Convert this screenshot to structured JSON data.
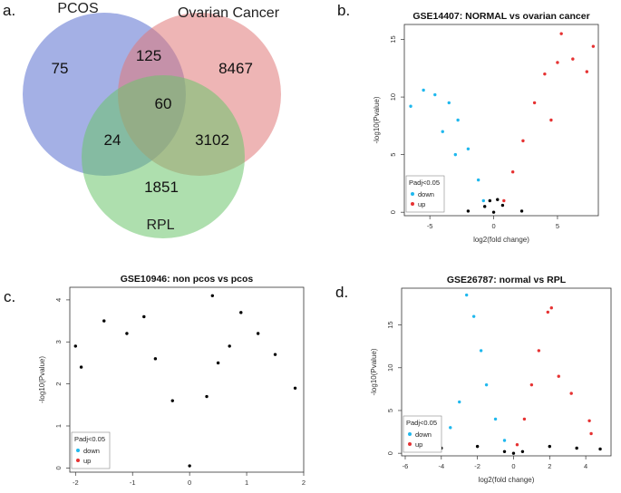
{
  "panel_letters": {
    "a": "a.",
    "b": "b.",
    "c": "c.",
    "d": "d."
  },
  "venn": {
    "sets": {
      "pcos": "PCOS",
      "ovarian": "Ovarian Cancer",
      "rpl": "RPL"
    },
    "colors": {
      "pcos": "#5a6fd0",
      "ovarian": "#e07878",
      "rpl": "#6cc46c"
    },
    "counts": {
      "pcos_only": "75",
      "pcos_ovarian": "125",
      "ovarian_only": "8467",
      "all_three": "60",
      "pcos_rpl": "24",
      "ovarian_rpl": "3102",
      "rpl_only": "1851"
    }
  },
  "legend": {
    "title": "Padj<0.05",
    "down": "down",
    "up": "up",
    "colors": {
      "down": "#1fb8ee",
      "up": "#e63232",
      "ns": "#000000"
    }
  },
  "chart_data": [
    {
      "type": "scatter",
      "title": "GSE14407: NORMAL vs ovarian cancer",
      "xlabel": "log2(fold change)",
      "ylabel": "-log10(Pvalue)",
      "xlim": [
        -7,
        8.2
      ],
      "ylim": [
        -0.3,
        16.3
      ],
      "xticks": [
        -5,
        0,
        5
      ],
      "yticks": [
        0,
        5,
        10,
        15
      ],
      "series": [
        {
          "name": "down",
          "color": "#1fb8ee",
          "points": [
            [
              -6.5,
              9.2
            ],
            [
              -5.5,
              10.6
            ],
            [
              -4.6,
              10.2
            ],
            [
              -3.5,
              9.5
            ],
            [
              -2.8,
              8.0
            ],
            [
              -2.0,
              5.5
            ],
            [
              -1.2,
              2.8
            ],
            [
              -0.8,
              1.0
            ],
            [
              -4.0,
              7.0
            ],
            [
              -3.0,
              5.0
            ]
          ]
        },
        {
          "name": "up",
          "color": "#e63232",
          "points": [
            [
              0.8,
              1.0
            ],
            [
              1.5,
              3.5
            ],
            [
              2.3,
              6.2
            ],
            [
              3.2,
              9.5
            ],
            [
              4.0,
              12.0
            ],
            [
              5.0,
              13.0
            ],
            [
              5.3,
              15.5
            ],
            [
              6.2,
              13.3
            ],
            [
              7.3,
              12.2
            ],
            [
              7.8,
              14.4
            ],
            [
              4.5,
              8.0
            ]
          ]
        },
        {
          "name": "ns",
          "color": "#000000",
          "points": [
            [
              -0.7,
              0.5
            ],
            [
              0,
              0.0
            ],
            [
              0.7,
              0.6
            ],
            [
              -2.0,
              0.1
            ],
            [
              2.2,
              0.1
            ],
            [
              -0.3,
              1.0
            ],
            [
              0.3,
              1.1
            ]
          ]
        }
      ]
    },
    {
      "type": "scatter",
      "title": "GSE10946: non pcos vs pcos",
      "xlabel": "log2(fold change)",
      "ylabel": "-log10(Pvalue)",
      "xlim": [
        -2.1,
        2.0
      ],
      "ylim": [
        -0.1,
        4.3
      ],
      "xticks": [
        -2,
        -1,
        0,
        1,
        2
      ],
      "yticks": [
        0,
        1,
        2,
        3,
        4
      ],
      "series": [
        {
          "name": "ns",
          "color": "#000000",
          "points": [
            [
              -2.0,
              2.9
            ],
            [
              -1.9,
              2.4
            ],
            [
              -1.5,
              3.5
            ],
            [
              -1.1,
              3.2
            ],
            [
              -0.6,
              2.6
            ],
            [
              -0.3,
              1.6
            ],
            [
              0,
              0.05
            ],
            [
              0.3,
              1.7
            ],
            [
              0.5,
              2.5
            ],
            [
              0.7,
              2.9
            ],
            [
              0.4,
              4.1
            ],
            [
              1.2,
              3.2
            ],
            [
              1.5,
              2.7
            ],
            [
              1.85,
              1.9
            ],
            [
              -0.8,
              3.6
            ],
            [
              0.9,
              3.7
            ]
          ]
        }
      ]
    },
    {
      "type": "scatter",
      "title": "GSE26787: normal vs RPL",
      "xlabel": "log2(fold change)",
      "ylabel": "-log10(Pvalue)",
      "xlim": [
        -6.2,
        5.4
      ],
      "ylim": [
        -0.3,
        19.3
      ],
      "xticks": [
        -6,
        -4,
        -2,
        0,
        2,
        4
      ],
      "yticks": [
        0,
        5,
        10,
        15
      ],
      "series": [
        {
          "name": "down",
          "color": "#1fb8ee",
          "points": [
            [
              -2.6,
              18.5
            ],
            [
              -2.2,
              16.0
            ],
            [
              -1.8,
              12.0
            ],
            [
              -1.5,
              8.0
            ],
            [
              -1.0,
              4.0
            ],
            [
              -0.5,
              1.5
            ],
            [
              -3.0,
              6.0
            ],
            [
              -3.5,
              3.0
            ],
            [
              -4.3,
              1.5
            ],
            [
              -5.8,
              3.3
            ],
            [
              -5.4,
              2.3
            ]
          ]
        },
        {
          "name": "up",
          "color": "#e63232",
          "points": [
            [
              0.2,
              1.0
            ],
            [
              0.6,
              4.0
            ],
            [
              1.0,
              8.0
            ],
            [
              1.4,
              12.0
            ],
            [
              1.9,
              16.5
            ],
            [
              2.1,
              17.0
            ],
            [
              2.5,
              9.0
            ],
            [
              3.2,
              7.0
            ],
            [
              4.2,
              3.8
            ],
            [
              4.3,
              2.3
            ]
          ]
        },
        {
          "name": "ns",
          "color": "#000000",
          "points": [
            [
              -4.0,
              0.6
            ],
            [
              -2.0,
              0.8
            ],
            [
              0,
              0.0
            ],
            [
              2.0,
              0.8
            ],
            [
              3.5,
              0.6
            ],
            [
              4.8,
              0.5
            ],
            [
              -0.5,
              0.2
            ],
            [
              0.5,
              0.2
            ]
          ]
        }
      ]
    }
  ]
}
